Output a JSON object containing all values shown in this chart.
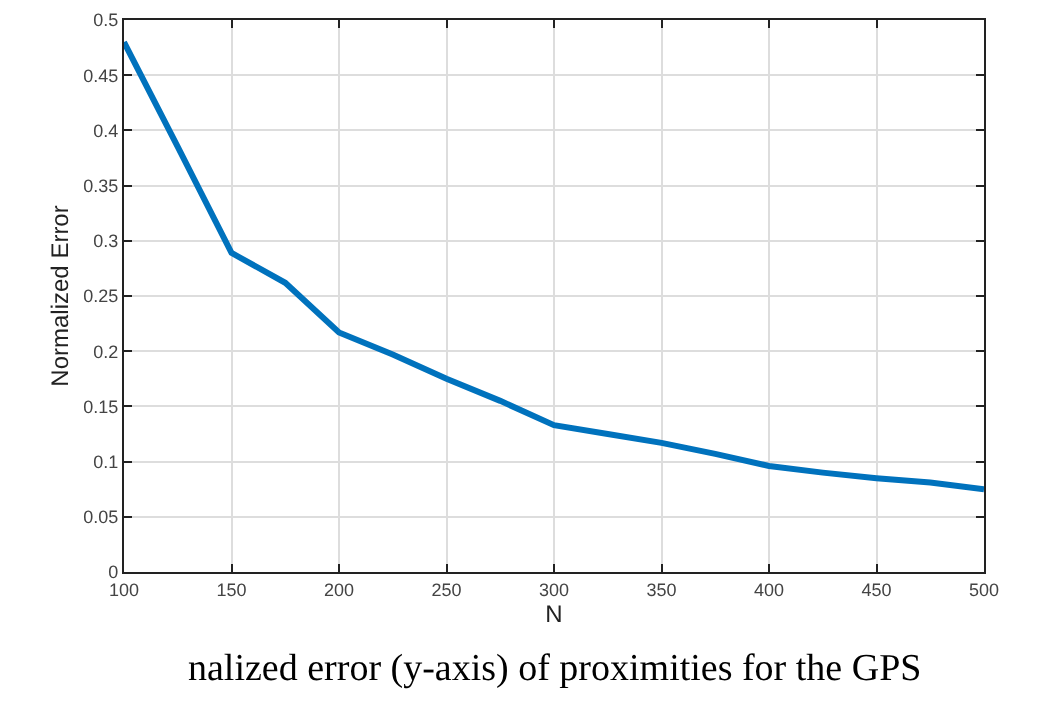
{
  "chart_data": {
    "type": "line",
    "xlabel": "N",
    "ylabel": "Normalized Error",
    "annotations": [
      "nalized error (y-axis) of proximities for the GPS"
    ],
    "x": [
      100,
      125,
      150,
      175,
      200,
      225,
      250,
      275,
      300,
      325,
      350,
      375,
      400,
      425,
      450,
      475,
      500
    ],
    "series": [
      {
        "color": "#0072bd",
        "values": [
          0.48,
          0.385,
          0.289,
          0.262,
          0.217,
          0.197,
          0.175,
          0.155,
          0.133,
          0.125,
          0.117,
          0.107,
          0.096,
          0.09,
          0.085,
          0.081,
          0.075
        ]
      }
    ],
    "xlim": [
      100,
      500
    ],
    "ylim": [
      0,
      0.5
    ],
    "xticks": [
      100,
      150,
      200,
      250,
      300,
      350,
      400,
      450,
      500
    ],
    "yticks": [
      0,
      0.05,
      0.1,
      0.15,
      0.2,
      0.25,
      0.3,
      0.35,
      0.4,
      0.45,
      0.5
    ],
    "grid": true,
    "marker": "none",
    "line_style": "solid"
  }
}
